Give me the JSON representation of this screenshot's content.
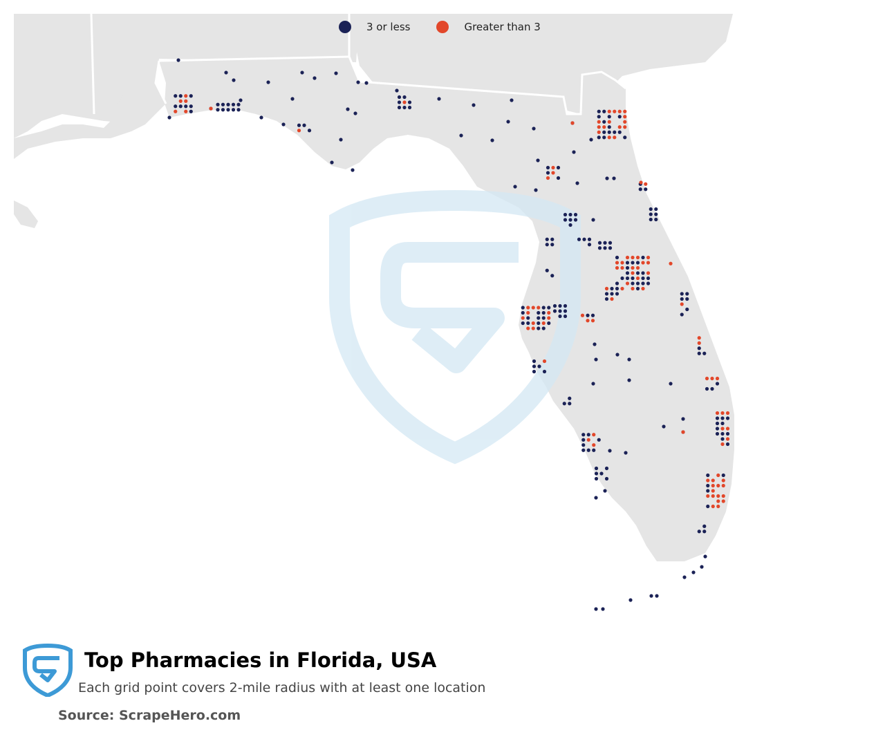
{
  "legend": {
    "low_label": "3 or less",
    "high_label": "Greater than 3"
  },
  "colors": {
    "low": "#1b2256",
    "high": "#e2472a",
    "land": "#e5e5e5",
    "border": "#ffffff",
    "watermark": "#d4e8f4",
    "logo": "#3d9ad6"
  },
  "title": "Top Pharmacies in Florida, USA",
  "subtitle": "Each grid point covers 2-mile radius with at least one location",
  "source": "Source: ScrapeHero.com",
  "icons": {
    "logo": "scrapehero-shield-logo",
    "watermark": "scrapehero-shield-watermark"
  }
}
